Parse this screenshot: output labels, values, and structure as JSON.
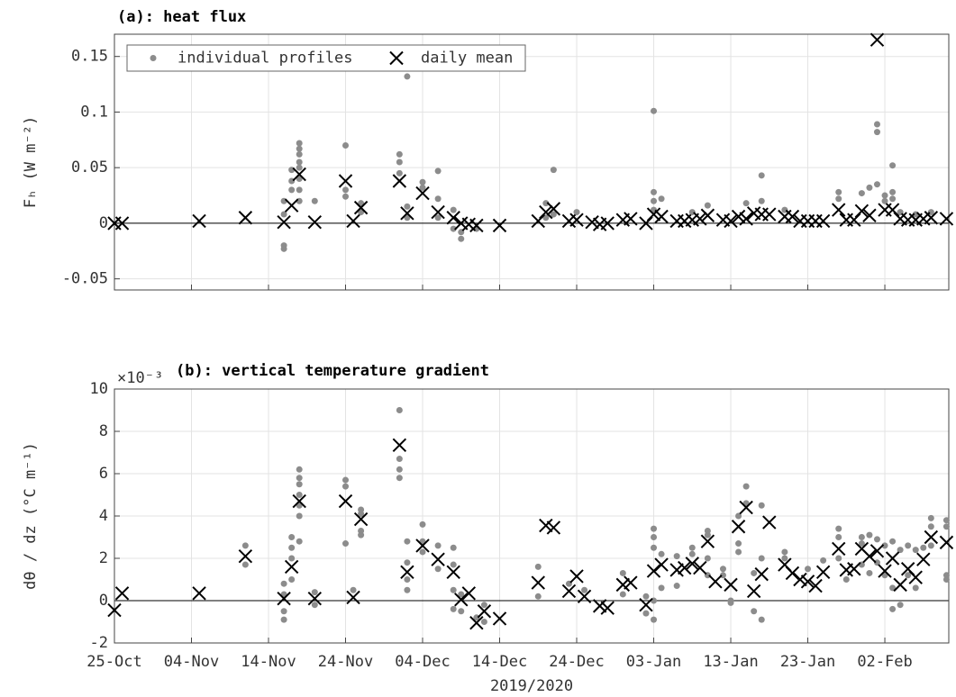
{
  "chart_data": [
    {
      "type": "scatter",
      "title": "(a): heat flux",
      "ylabel": "Fₕ (W m⁻²)",
      "xlim": [
        0,
        108.3
      ],
      "ylim": [
        -0.06,
        0.17
      ],
      "yticks": [
        -0.05,
        0,
        0.05,
        0.1,
        0.15
      ],
      "grid": true,
      "zero_line": true,
      "legend": "upper left",
      "series": [
        {
          "name": "individual profiles",
          "marker": "dot",
          "color": "#8c8c8c",
          "x": [
            24,
            24,
            24,
            24,
            24,
            24,
            24,
            24,
            23,
            23,
            23,
            22,
            22,
            22,
            22,
            26,
            30,
            30,
            30,
            32,
            32,
            37,
            37,
            37,
            38,
            38,
            38,
            40,
            40,
            42,
            42,
            42,
            44,
            44,
            45,
            45,
            47,
            56,
            56,
            57,
            57,
            60,
            70,
            70,
            70,
            70,
            71,
            75,
            77,
            82,
            84,
            84,
            87,
            94,
            94,
            97,
            98,
            99,
            99,
            99,
            100,
            100,
            101,
            101,
            101,
            102,
            104,
            106
          ],
          "values": [
            0.072,
            0.067,
            0.062,
            0.055,
            0.05,
            0.04,
            0.03,
            0.02,
            0.048,
            0.038,
            0.03,
            0.02,
            0.008,
            -0.02,
            -0.023,
            0.02,
            0.07,
            0.03,
            0.024,
            0.018,
            0.01,
            0.062,
            0.055,
            0.045,
            0.132,
            0.015,
            0.005,
            0.037,
            0.032,
            0.047,
            0.022,
            0.005,
            0.012,
            -0.005,
            -0.014,
            -0.008,
            -0.005,
            0.018,
            0.005,
            0.048,
            0.008,
            0.01,
            0.101,
            0.028,
            0.02,
            0.012,
            0.022,
            0.01,
            0.016,
            0.018,
            0.043,
            0.02,
            0.012,
            0.028,
            0.022,
            0.027,
            0.032,
            0.089,
            0.082,
            0.035,
            0.025,
            0.02,
            0.052,
            0.028,
            0.022,
            0.01,
            0.008,
            0.01
          ]
        },
        {
          "name": "daily mean",
          "marker": "x",
          "color": "#000000",
          "x": [
            0,
            1,
            11,
            17,
            22,
            23,
            24,
            26,
            30,
            31,
            32,
            37,
            38,
            40,
            42,
            44,
            45,
            46,
            47,
            50,
            55,
            56,
            57,
            59,
            60,
            62,
            63,
            64,
            66,
            67,
            69,
            70,
            71,
            73,
            74,
            75,
            76,
            77,
            79,
            80,
            81,
            82,
            83,
            84,
            85,
            87,
            88,
            89,
            90,
            91,
            92,
            94,
            95,
            96,
            97,
            98,
            99,
            100,
            101,
            102,
            103,
            104,
            105,
            106,
            108
          ],
          "values": [
            0,
            0,
            0.002,
            0.005,
            0.001,
            0.016,
            0.044,
            0.001,
            0.038,
            0.002,
            0.014,
            0.038,
            0.009,
            0.027,
            0.01,
            0.005,
            0,
            -0.001,
            -0.002,
            -0.002,
            0.002,
            0.01,
            0.013,
            0.002,
            0.003,
            0.001,
            -0.001,
            0,
            0.003,
            0.004,
            0,
            0.008,
            0.006,
            0.002,
            0.002,
            0.003,
            0.004,
            0.007,
            0.003,
            0.002,
            0.006,
            0.004,
            0.009,
            0.008,
            0.008,
            0.006,
            0.006,
            0.002,
            0.002,
            0.002,
            0.002,
            0.012,
            0.003,
            0.003,
            0.011,
            0.007,
            0.165,
            0.012,
            0.012,
            0.004,
            0.003,
            0.003,
            0.004,
            0.005,
            0.004
          ]
        }
      ]
    },
    {
      "type": "scatter",
      "title": "(b): vertical temperature gradient",
      "ylabel": "dθ / dz (°C m⁻¹)",
      "y_offset_label": "×10⁻³",
      "xlabel": "2019/2020",
      "xlim": [
        0,
        108.3
      ],
      "ylim": [
        -2,
        10
      ],
      "yticks": [
        -2,
        0,
        2,
        4,
        6,
        8,
        10
      ],
      "grid": true,
      "zero_line": true,
      "xticks": [
        {
          "value": 0,
          "label": "25-Oct"
        },
        {
          "value": 10,
          "label": "04-Nov"
        },
        {
          "value": 20,
          "label": "14-Nov"
        },
        {
          "value": 30,
          "label": "24-Nov"
        },
        {
          "value": 40,
          "label": "04-Dec"
        },
        {
          "value": 50,
          "label": "14-Dec"
        },
        {
          "value": 60,
          "label": "24-Dec"
        },
        {
          "value": 70,
          "label": "03-Jan"
        },
        {
          "value": 80,
          "label": "13-Jan"
        },
        {
          "value": 90,
          "label": "23-Jan"
        },
        {
          "value": 100,
          "label": "02-Feb"
        }
      ],
      "series": [
        {
          "name": "individual profiles",
          "marker": "dot",
          "color": "#8c8c8c",
          "x": [
            17,
            17,
            22,
            22,
            22,
            22,
            23,
            23,
            23,
            23,
            24,
            24,
            24,
            24,
            24,
            24,
            24,
            26,
            26,
            30,
            30,
            30,
            31,
            32,
            32,
            32,
            32,
            37,
            37,
            37,
            37,
            38,
            38,
            38,
            38,
            40,
            40,
            40,
            42,
            42,
            44,
            44,
            44,
            44,
            45,
            45,
            47,
            48,
            48,
            55,
            55,
            59,
            61,
            66,
            66,
            69,
            69,
            70,
            70,
            70,
            70,
            70,
            71,
            71,
            73,
            73,
            75,
            75,
            77,
            77,
            77,
            77,
            79,
            79,
            80,
            80,
            81,
            81,
            81,
            82,
            82,
            83,
            83,
            84,
            84,
            84,
            87,
            87,
            90,
            92,
            94,
            94,
            94,
            95,
            97,
            97,
            97,
            98,
            98,
            99,
            99,
            100,
            100,
            101,
            101,
            101,
            102,
            102,
            103,
            103,
            104,
            104,
            105,
            106,
            106,
            106,
            108,
            108,
            108,
            108
          ],
          "values": [
            2.6,
            1.7,
            0.8,
            -0.5,
            -0.9,
            0.3,
            3.0,
            2.5,
            2.0,
            1.0,
            6.2,
            5.8,
            5.5,
            5.0,
            4.5,
            4.0,
            2.8,
            0.4,
            -0.2,
            5.7,
            5.4,
            2.7,
            0.5,
            4.3,
            4.1,
            3.3,
            3.1,
            9.0,
            6.7,
            6.2,
            5.8,
            2.8,
            1.8,
            1.0,
            0.5,
            3.6,
            2.8,
            2.3,
            2.6,
            1.5,
            2.5,
            1.7,
            0.5,
            -0.4,
            0.3,
            -0.5,
            -0.8,
            -1.0,
            -0.2,
            1.6,
            0.2,
            0.8,
            0.5,
            1.3,
            0.3,
            0.2,
            -0.6,
            3.4,
            3.0,
            2.5,
            -0.9,
            0.0,
            2.2,
            0.6,
            2.1,
            0.7,
            2.5,
            2.2,
            3.3,
            3.1,
            2.0,
            1.2,
            1.5,
            1.2,
            0.0,
            -0.1,
            4.0,
            2.7,
            2.3,
            5.4,
            4.6,
            1.3,
            -0.5,
            -0.9,
            2.0,
            4.5,
            2.3,
            2.0,
            1.5,
            1.9,
            3.4,
            3.0,
            2.0,
            1.0,
            3.0,
            2.7,
            1.7,
            3.1,
            1.3,
            2.9,
            1.8,
            2.6,
            1.2,
            2.8,
            0.6,
            -0.4,
            2.4,
            -0.2,
            2.6,
            1.2,
            2.4,
            0.6,
            2.5,
            3.9,
            3.5,
            2.6,
            3.8,
            3.5,
            1.2,
            1.0
          ]
        },
        {
          "name": "daily mean",
          "marker": "x",
          "color": "#000000",
          "x": [
            0,
            1,
            11,
            17,
            22,
            23,
            24,
            26,
            30,
            31,
            32,
            37,
            38,
            40,
            42,
            44,
            45,
            46,
            47,
            48,
            50,
            55,
            56,
            57,
            59,
            60,
            61,
            63,
            64,
            66,
            67,
            69,
            70,
            71,
            73,
            74,
            75,
            76,
            77,
            78,
            80,
            81,
            82,
            83,
            84,
            85,
            87,
            88,
            89,
            90,
            91,
            92,
            94,
            95,
            96,
            97,
            98,
            99,
            100,
            101,
            102,
            103,
            104,
            105,
            106,
            108
          ],
          "values": [
            -0.45,
            0.35,
            0.35,
            2.1,
            0.1,
            1.6,
            4.7,
            0.1,
            4.7,
            0.15,
            3.85,
            7.35,
            1.35,
            2.6,
            1.95,
            1.35,
            0.05,
            0.35,
            -1.05,
            -0.5,
            -0.85,
            0.85,
            3.55,
            3.45,
            0.45,
            1.15,
            0.2,
            -0.25,
            -0.35,
            0.75,
            0.85,
            -0.2,
            1.4,
            1.7,
            1.45,
            1.55,
            1.75,
            1.55,
            2.8,
            0.9,
            0.75,
            3.5,
            4.4,
            0.45,
            1.25,
            3.7,
            1.7,
            1.3,
            1.0,
            0.9,
            0.7,
            1.35,
            2.45,
            1.45,
            1.5,
            2.45,
            2.1,
            2.35,
            1.4,
            2.0,
            0.75,
            1.5,
            1.1,
            1.95,
            3.0,
            2.75
          ]
        }
      ]
    }
  ]
}
